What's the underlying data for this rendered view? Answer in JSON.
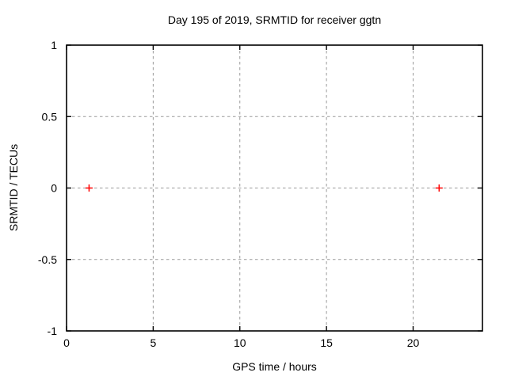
{
  "chart_data": {
    "type": "scatter",
    "title": "Day 195 of 2019, SRMTID for receiver ggtn",
    "xlabel": "GPS time / hours",
    "ylabel": "SRMTID / TECUs",
    "xlim": [
      0,
      24
    ],
    "ylim": [
      -1,
      1
    ],
    "xticks": [
      0,
      5,
      10,
      15,
      20
    ],
    "yticks": [
      -1,
      -0.5,
      0,
      0.5,
      1
    ],
    "grid": true,
    "legend": "none",
    "series": [
      {
        "name": "SRMTID",
        "marker": "plus",
        "color": "#ff0000",
        "points": [
          {
            "x": 1.3,
            "y": 0
          },
          {
            "x": 21.5,
            "y": 0
          }
        ]
      }
    ],
    "style": {
      "border_color": "#000000",
      "grid_color": "#9a9a9a",
      "text_color": "#000000",
      "background": "#ffffff"
    }
  }
}
